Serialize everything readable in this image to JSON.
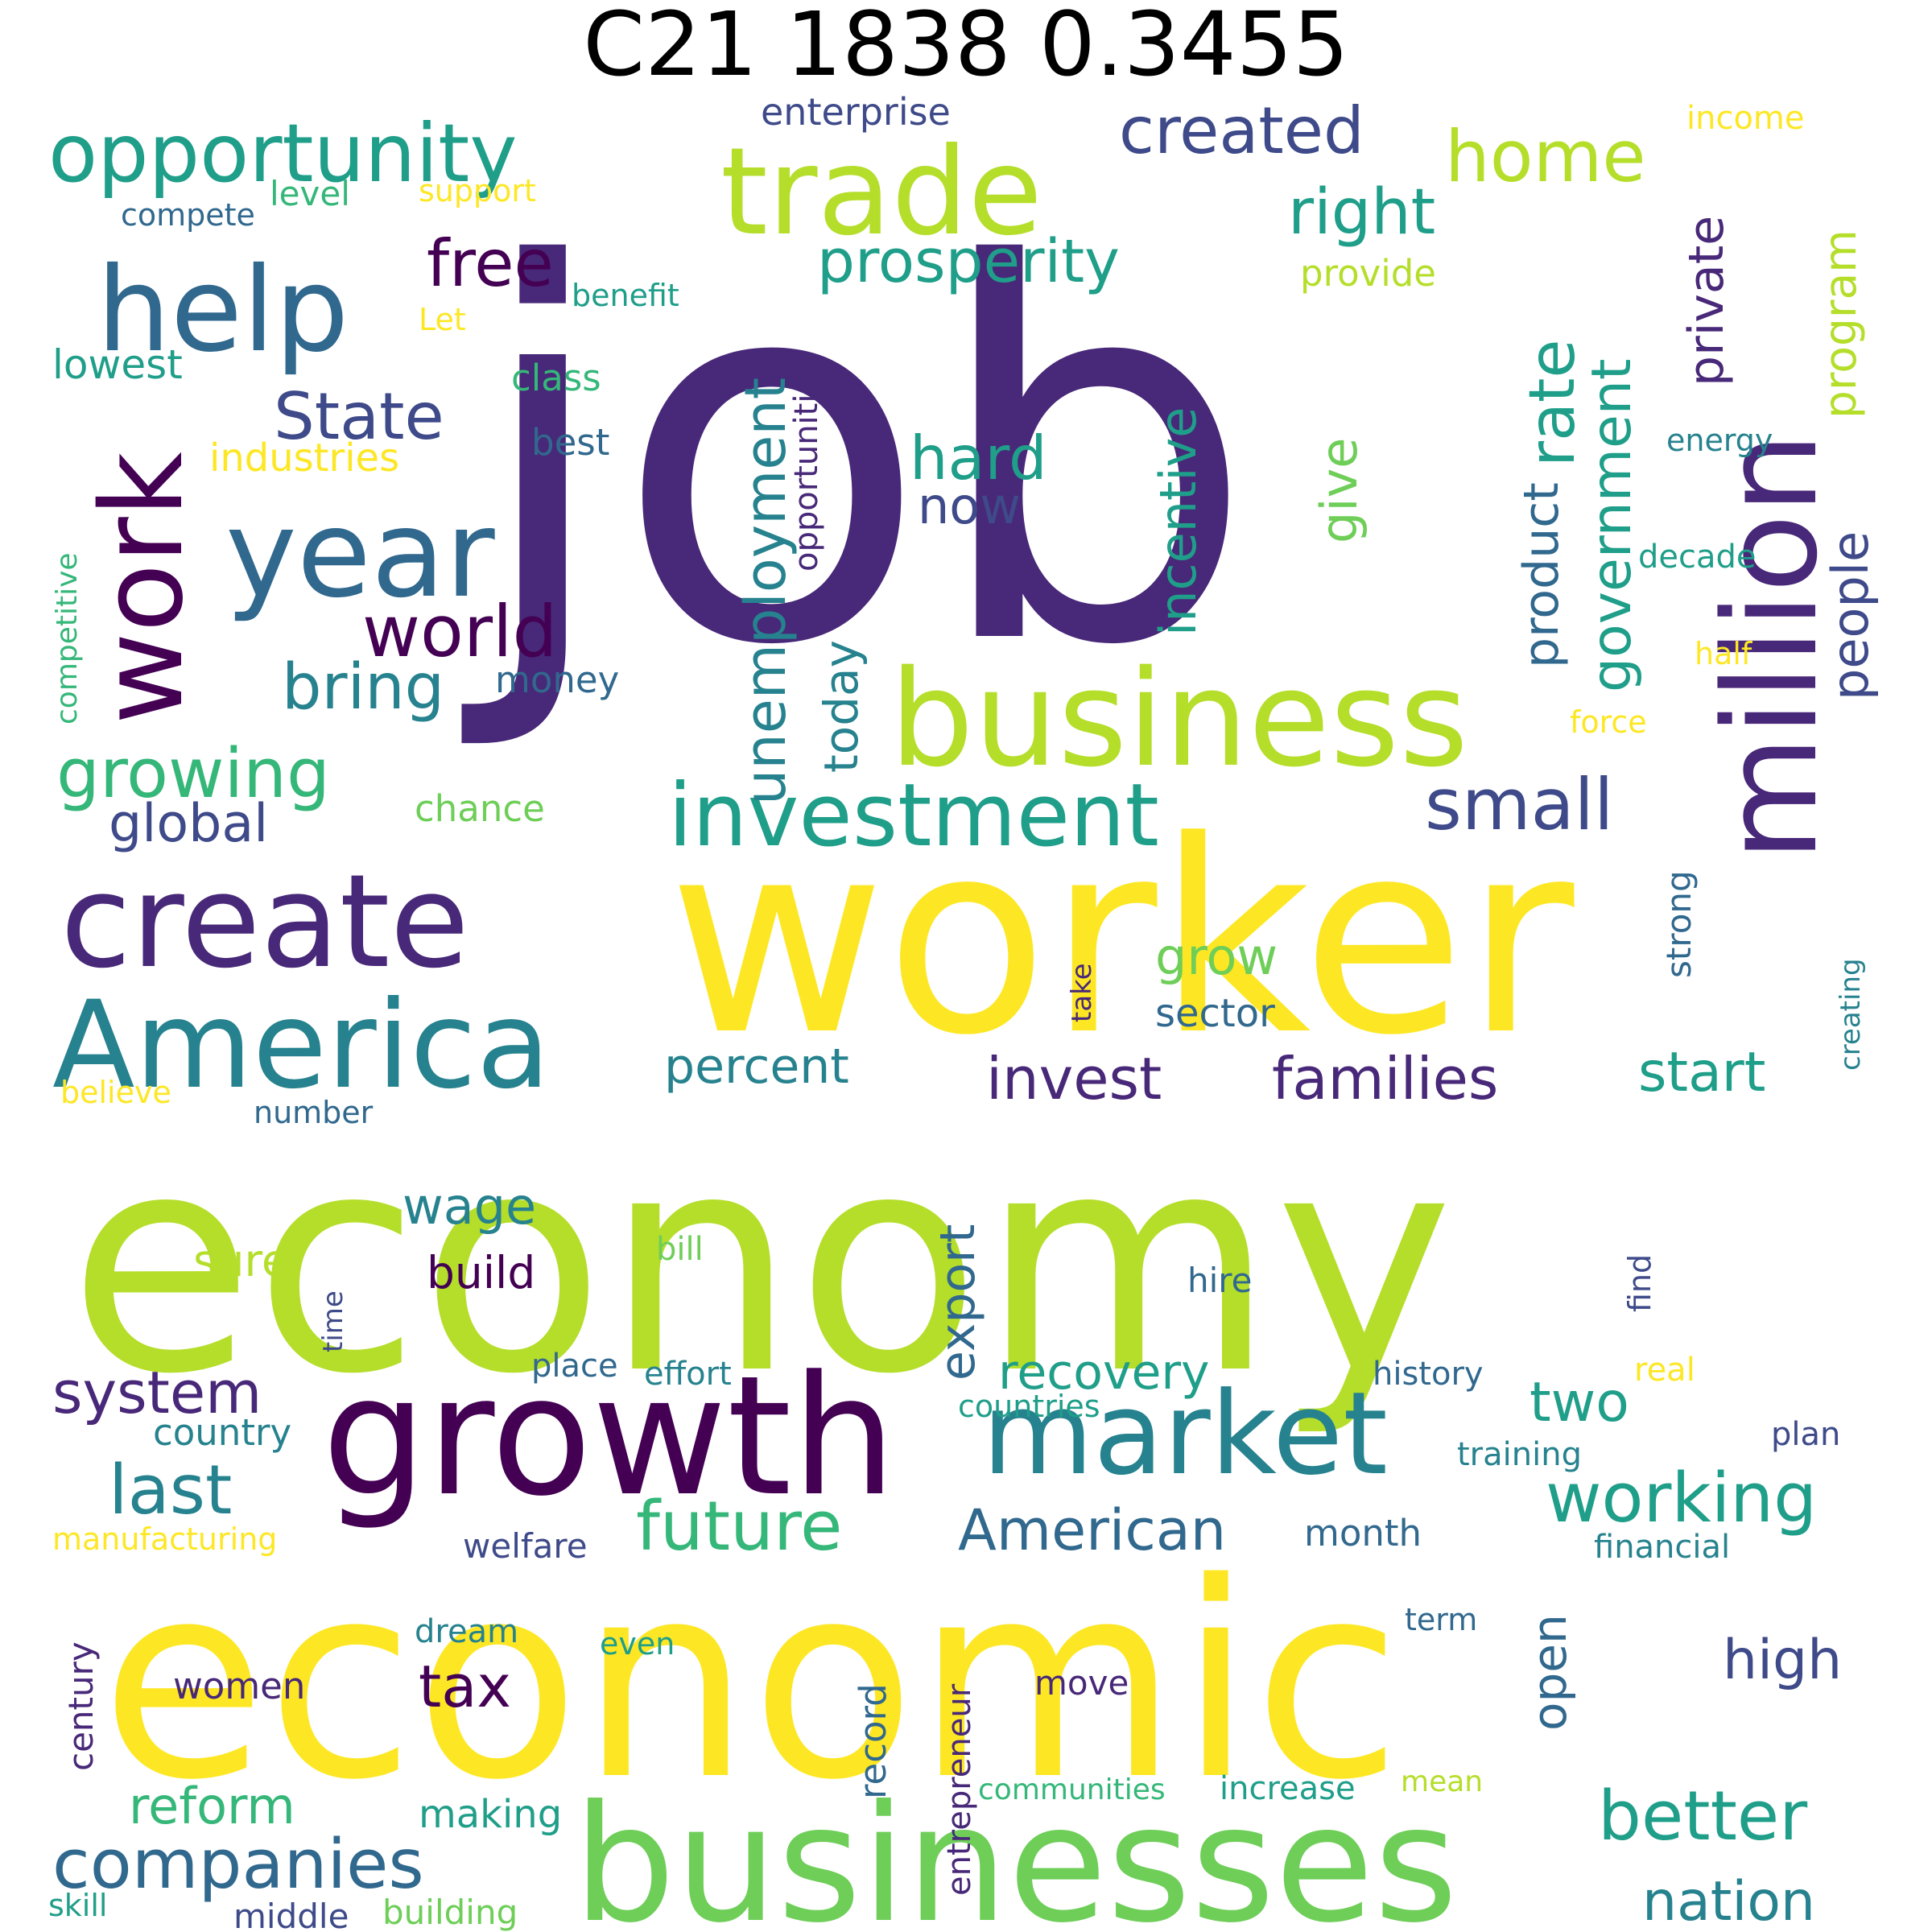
{
  "title": "C21 1838 0.3455",
  "palette": {
    "c0": "#440154",
    "c1": "#482878",
    "c2": "#3e4a89",
    "c3": "#31688e",
    "c4": "#26828e",
    "c5": "#1f9e89",
    "c6": "#35b779",
    "c7": "#6ece58",
    "c8": "#b5de2b",
    "c9": "#fde725"
  },
  "words": [
    {
      "text": "job",
      "color": "c1"
    },
    {
      "text": "worker",
      "color": "c9"
    },
    {
      "text": "economy",
      "color": "c8"
    },
    {
      "text": "economic",
      "color": "c9"
    },
    {
      "text": "businesses",
      "color": "c7"
    },
    {
      "text": "growth",
      "color": "c0"
    },
    {
      "text": "business",
      "color": "c8"
    },
    {
      "text": "create",
      "color": "c1"
    },
    {
      "text": "America",
      "color": "c4"
    },
    {
      "text": "market",
      "color": "c4"
    },
    {
      "text": "trade",
      "color": "c8"
    },
    {
      "text": "year",
      "color": "c3"
    },
    {
      "text": "million",
      "color": "c1"
    },
    {
      "text": "help",
      "color": "c3"
    },
    {
      "text": "work",
      "color": "c0"
    },
    {
      "text": "opportunity",
      "color": "c5"
    },
    {
      "text": "investment",
      "color": "c5"
    },
    {
      "text": "created",
      "color": "c2"
    },
    {
      "text": "home",
      "color": "c8"
    },
    {
      "text": "right",
      "color": "c5"
    },
    {
      "text": "free",
      "color": "c0"
    },
    {
      "text": "prosperity",
      "color": "c5"
    },
    {
      "text": "unemployment",
      "color": "c4"
    },
    {
      "text": "rate",
      "color": "c5"
    },
    {
      "text": "government",
      "color": "c5"
    },
    {
      "text": "private",
      "color": "c1"
    },
    {
      "text": "program",
      "color": "c8"
    },
    {
      "text": "State",
      "color": "c2"
    },
    {
      "text": "world",
      "color": "c0"
    },
    {
      "text": "incentive",
      "color": "c5"
    },
    {
      "text": "hard",
      "color": "c5"
    },
    {
      "text": "now",
      "color": "c2"
    },
    {
      "text": "give",
      "color": "c7"
    },
    {
      "text": "product",
      "color": "c3"
    },
    {
      "text": "people",
      "color": "c2"
    },
    {
      "text": "bring",
      "color": "c4"
    },
    {
      "text": "growing",
      "color": "c6"
    },
    {
      "text": "today",
      "color": "c4"
    },
    {
      "text": "small",
      "color": "c2"
    },
    {
      "text": "global",
      "color": "c2"
    },
    {
      "text": "invest",
      "color": "c1"
    },
    {
      "text": "families",
      "color": "c1"
    },
    {
      "text": "start",
      "color": "c5"
    },
    {
      "text": "percent",
      "color": "c4"
    },
    {
      "text": "grow",
      "color": "c7"
    },
    {
      "text": "sector",
      "color": "c3"
    },
    {
      "text": "wage",
      "color": "c4"
    },
    {
      "text": "export",
      "color": "c3"
    },
    {
      "text": "build",
      "color": "c0"
    },
    {
      "text": "sure",
      "color": "c8"
    },
    {
      "text": "system",
      "color": "c1"
    },
    {
      "text": "recovery",
      "color": "c5"
    },
    {
      "text": "two",
      "color": "c5"
    },
    {
      "text": "last",
      "color": "c4"
    },
    {
      "text": "working",
      "color": "c5"
    },
    {
      "text": "future",
      "color": "c6"
    },
    {
      "text": "American",
      "color": "c3"
    },
    {
      "text": "companies",
      "color": "c3"
    },
    {
      "text": "reform",
      "color": "c6"
    },
    {
      "text": "tax",
      "color": "c0"
    },
    {
      "text": "open",
      "color": "c3"
    },
    {
      "text": "high",
      "color": "c2"
    },
    {
      "text": "better",
      "color": "c5"
    },
    {
      "text": "nation",
      "color": "c4"
    },
    {
      "text": "enterprise",
      "color": "c2"
    },
    {
      "text": "income",
      "color": "c9"
    },
    {
      "text": "level",
      "color": "c6"
    },
    {
      "text": "support",
      "color": "c9"
    },
    {
      "text": "compete",
      "color": "c3"
    },
    {
      "text": "provide",
      "color": "c8"
    },
    {
      "text": "benefit",
      "color": "c5"
    },
    {
      "text": "Let",
      "color": "c9"
    },
    {
      "text": "lowest",
      "color": "c5"
    },
    {
      "text": "class",
      "color": "c6"
    },
    {
      "text": "opportunities",
      "color": "c1"
    },
    {
      "text": "industries",
      "color": "c9"
    },
    {
      "text": "best",
      "color": "c3"
    },
    {
      "text": "energy",
      "color": "c4"
    },
    {
      "text": "competitive",
      "color": "c6"
    },
    {
      "text": "money",
      "color": "c3"
    },
    {
      "text": "decade",
      "color": "c5"
    },
    {
      "text": "half",
      "color": "c9"
    },
    {
      "text": "force",
      "color": "c9"
    },
    {
      "text": "chance",
      "color": "c7"
    },
    {
      "text": "strong",
      "color": "c3"
    },
    {
      "text": "take",
      "color": "c1"
    },
    {
      "text": "creating",
      "color": "c4"
    },
    {
      "text": "believe",
      "color": "c9"
    },
    {
      "text": "number",
      "color": "c3"
    },
    {
      "text": "bill",
      "color": "c7"
    },
    {
      "text": "hire",
      "color": "c3"
    },
    {
      "text": "find",
      "color": "c2"
    },
    {
      "text": "time",
      "color": "c2"
    },
    {
      "text": "place",
      "color": "c3"
    },
    {
      "text": "effort",
      "color": "c4"
    },
    {
      "text": "history",
      "color": "c3"
    },
    {
      "text": "real",
      "color": "c9"
    },
    {
      "text": "countries",
      "color": "c5"
    },
    {
      "text": "country",
      "color": "c4"
    },
    {
      "text": "training",
      "color": "c4"
    },
    {
      "text": "plan",
      "color": "c2"
    },
    {
      "text": "manufacturing",
      "color": "c9"
    },
    {
      "text": "welfare",
      "color": "c2"
    },
    {
      "text": "month",
      "color": "c3"
    },
    {
      "text": "financial",
      "color": "c4"
    },
    {
      "text": "century",
      "color": "c1"
    },
    {
      "text": "dream",
      "color": "c4"
    },
    {
      "text": "even",
      "color": "c5"
    },
    {
      "text": "term",
      "color": "c3"
    },
    {
      "text": "women",
      "color": "c1"
    },
    {
      "text": "record",
      "color": "c3"
    },
    {
      "text": "entrepreneur",
      "color": "c1"
    },
    {
      "text": "move",
      "color": "c1"
    },
    {
      "text": "making",
      "color": "c5"
    },
    {
      "text": "communities",
      "color": "c6"
    },
    {
      "text": "increase",
      "color": "c5"
    },
    {
      "text": "mean",
      "color": "c8"
    },
    {
      "text": "skill",
      "color": "c5"
    },
    {
      "text": "middle",
      "color": "c2"
    },
    {
      "text": "building",
      "color": "c7"
    }
  ]
}
